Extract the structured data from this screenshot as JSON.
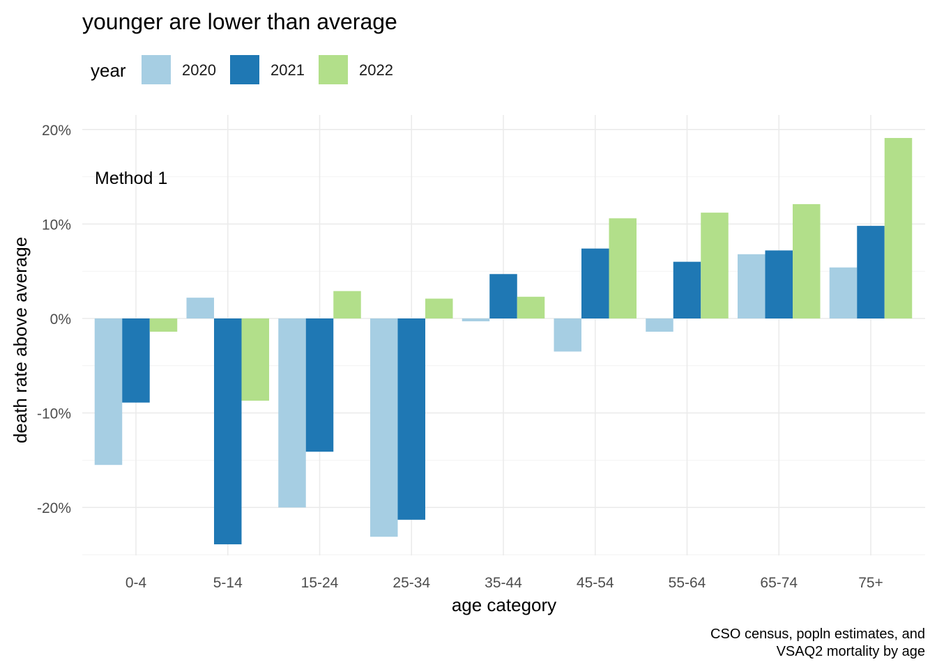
{
  "chart_data": {
    "type": "bar",
    "title": "younger are lower than average",
    "xlabel": "age category",
    "ylabel": "death rate above average",
    "annotation": "Method 1",
    "caption": [
      "CSO census, popln estimates, and",
      "VSAQ2 mortality by age"
    ],
    "legend": {
      "title": "year",
      "position": "top-left"
    },
    "categories": [
      "0-4",
      "5-14",
      "15-24",
      "25-34",
      "35-44",
      "45-54",
      "55-64",
      "65-74",
      "75+"
    ],
    "series": [
      {
        "name": "2020",
        "color": "#a6cee3",
        "values": [
          -15.5,
          2.2,
          -20.0,
          -23.1,
          -0.3,
          -3.5,
          -1.4,
          6.8,
          5.4
        ]
      },
      {
        "name": "2021",
        "color": "#1f78b4",
        "values": [
          -8.9,
          -23.9,
          -14.1,
          -21.3,
          4.7,
          7.4,
          6.0,
          7.2,
          9.8
        ]
      },
      {
        "name": "2022",
        "color": "#b2df8a",
        "values": [
          -1.4,
          -8.7,
          2.9,
          2.1,
          2.3,
          10.6,
          11.2,
          12.1,
          19.1
        ]
      }
    ],
    "yticks": [
      -20,
      -10,
      0,
      10,
      20
    ],
    "yticklabels": [
      "-20%",
      "-10%",
      "0%",
      "10%",
      "20%"
    ],
    "ylim": [
      -25,
      21
    ],
    "grid": true
  }
}
